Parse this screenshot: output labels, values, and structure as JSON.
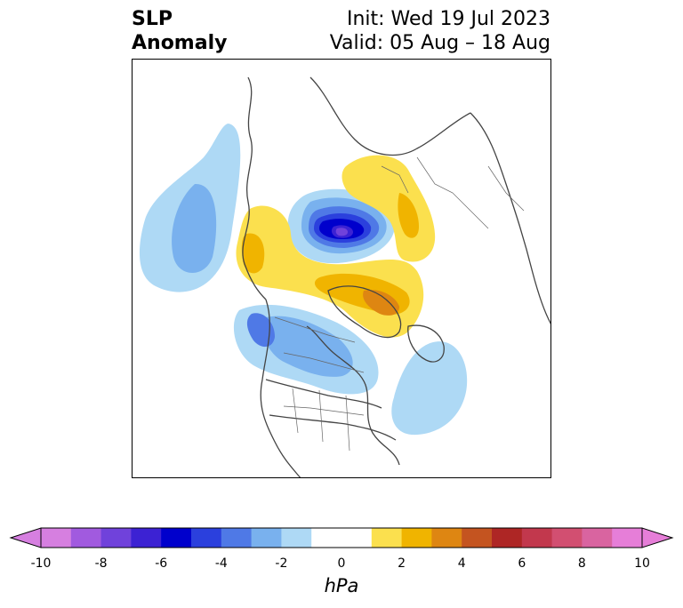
{
  "title": {
    "left_line1": "SLP",
    "left_line2": "Anomaly",
    "right_line1": "Init: Wed 19 Jul 2023",
    "right_line2": "Valid: 05 Aug – 18 Aug"
  },
  "map": {
    "projection": "north-polar stereographic",
    "region": "Northern Hemisphere (North America / Arctic)",
    "features": [
      {
        "sign": "negative",
        "level_hPa": -8,
        "location": "Arctic Ocean / near North Pole"
      },
      {
        "sign": "negative",
        "level_hPa": -3,
        "location": "North Pacific west of Alaska"
      },
      {
        "sign": "negative",
        "level_hPa": -4,
        "location": "Western Canada / Gulf of Alaska"
      },
      {
        "sign": "negative",
        "level_hPa": -2,
        "location": "Western North Atlantic"
      },
      {
        "sign": "positive",
        "level_hPa": 2,
        "location": "Greenland"
      },
      {
        "sign": "positive",
        "level_hPa": 2,
        "location": "Northern Siberia"
      },
      {
        "sign": "positive",
        "level_hPa": 2,
        "location": "Kamchatka / Bering Sea region"
      }
    ]
  },
  "colorbar": {
    "label": "hPa",
    "extend": "both",
    "tick_labels": [
      "-10",
      "-8",
      "-6",
      "-4",
      "-2",
      "0",
      "2",
      "4",
      "6",
      "8",
      "10"
    ],
    "colors": [
      "#d67fe0",
      "#a15adf",
      "#7042db",
      "#3c22d3",
      "#0000cc",
      "#2b40dd",
      "#4f79e6",
      "#79b1ee",
      "#aed9f5",
      "#ffffff",
      "#ffffff",
      "#fbe04e",
      "#f0b400",
      "#de8612",
      "#c45420",
      "#ae2625",
      "#c2384d",
      "#d24f71",
      "#d964a0",
      "#e67ed8"
    ],
    "extend_colors": {
      "low": "#d67fe0",
      "high": "#e67ed8"
    }
  }
}
